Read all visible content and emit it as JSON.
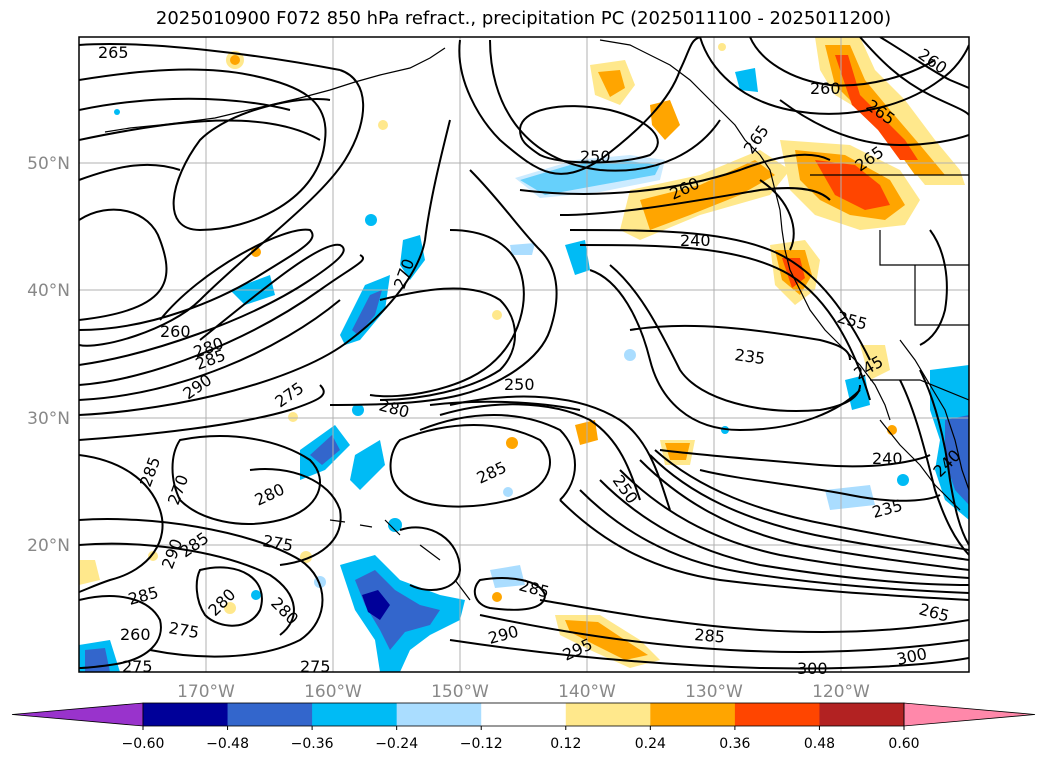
{
  "title": "2025010900 F072 850 hPa refract., precipitation PC (2025011100 - 2025011200)",
  "latitude_labels": [
    "50°N",
    "40°N",
    "30°N",
    "20°N"
  ],
  "longitude_labels": [
    "170°W",
    "160°W",
    "150°W",
    "140°W",
    "130°W",
    "120°W"
  ],
  "contour_labels": [
    "265",
    "260",
    "265",
    "260",
    "265",
    "265",
    "250",
    "260",
    "240",
    "270",
    "260",
    "280",
    "285",
    "290",
    "275",
    "280",
    "250",
    "235",
    "255",
    "245",
    "285",
    "270",
    "280",
    "285",
    "250",
    "240",
    "235",
    "275",
    "290",
    "285",
    "285",
    "280",
    "280",
    "275",
    "260",
    "285",
    "290",
    "295",
    "285",
    "300",
    "300",
    "265",
    "275",
    "275",
    "240"
  ],
  "colorbar": {
    "tick_labels": [
      "−0.60",
      "−0.48",
      "−0.36",
      "−0.24",
      "−0.12",
      "0.12",
      "0.24",
      "0.36",
      "0.48",
      "0.60"
    ],
    "colors": [
      "#9933cc",
      "#000099",
      "#3366cc",
      "#00bbf5",
      "#aaddff",
      "#ffffff",
      "#ffe88c",
      "#ffa500",
      "#ff4500",
      "#b22222",
      "#ff88aa"
    ]
  },
  "colors": {
    "contour": "#000000",
    "coast": "#000000",
    "grid": "#b0b0b0",
    "pos_light": "#ffe88c",
    "pos_mid": "#ffa500",
    "pos_high": "#ff4500",
    "neg_light": "#aaddff",
    "neg_mid": "#00bbf5",
    "neg_high": "#3366cc"
  }
}
